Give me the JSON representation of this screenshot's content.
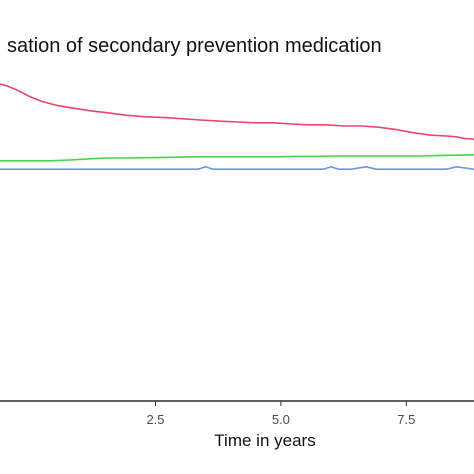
{
  "chart_data": {
    "type": "line",
    "title": "sation of secondary prevention medication",
    "xlabel": "Time in years",
    "ylabel": "",
    "xlim": [
      -0.6,
      8.85
    ],
    "ylim": [
      0,
      100
    ],
    "x_ticks": [
      2.5,
      5.0,
      7.5
    ],
    "x_tick_labels": [
      "2.5",
      "5.0",
      "7.5"
    ],
    "grid": false,
    "legend": "none",
    "series": [
      {
        "color": "#e8476a",
        "x": [
          -0.6,
          -0.45,
          -0.3,
          -0.15,
          0.0,
          0.25,
          0.55,
          0.9,
          1.2,
          1.55,
          1.9,
          2.3,
          2.7,
          3.05,
          3.4,
          3.8,
          4.15,
          4.5,
          4.85,
          5.2,
          5.55,
          5.9,
          6.25,
          6.6,
          6.95,
          7.3,
          7.65,
          8.0,
          8.3,
          8.5,
          8.65,
          8.85
        ],
        "y": [
          79.0,
          78.5,
          77.7,
          76.8,
          75.8,
          74.6,
          73.6,
          72.9,
          72.3,
          71.8,
          71.2,
          70.8,
          70.6,
          70.3,
          70.0,
          69.7,
          69.5,
          69.3,
          69.3,
          69.0,
          68.8,
          68.8,
          68.5,
          68.5,
          68.2,
          67.6,
          66.8,
          66.2,
          66.0,
          65.8,
          65.4,
          65.2
        ]
      },
      {
        "color": "#4cd14a",
        "x": [
          -0.6,
          -0.3,
          0.0,
          0.4,
          0.8,
          1.2,
          1.5,
          2.0,
          2.5,
          2.9,
          3.3,
          3.7,
          4.1,
          4.5,
          4.9,
          5.3,
          5.7,
          6.1,
          6.5,
          6.9,
          7.3,
          7.7,
          8.1,
          8.5,
          8.85
        ],
        "y": [
          59.8,
          59.8,
          59.8,
          59.8,
          60.0,
          60.3,
          60.5,
          60.5,
          60.6,
          60.7,
          60.8,
          60.8,
          60.8,
          60.8,
          60.8,
          60.9,
          60.9,
          61.0,
          61.0,
          61.0,
          61.0,
          61.0,
          61.1,
          61.2,
          61.3
        ]
      },
      {
        "color": "#6b98e6",
        "x": [
          -0.6,
          -0.3,
          0.0,
          0.5,
          1.0,
          1.5,
          2.0,
          2.5,
          3.0,
          3.35,
          3.5,
          3.65,
          4.0,
          4.5,
          5.0,
          5.5,
          5.85,
          6.0,
          6.15,
          6.4,
          6.7,
          6.9,
          7.1,
          7.5,
          8.0,
          8.3,
          8.5,
          8.85
        ],
        "y": [
          57.7,
          57.7,
          57.7,
          57.7,
          57.7,
          57.7,
          57.7,
          57.7,
          57.7,
          57.7,
          58.3,
          57.7,
          57.7,
          57.7,
          57.7,
          57.7,
          57.7,
          58.3,
          57.7,
          57.7,
          58.3,
          57.7,
          57.7,
          57.7,
          57.7,
          57.7,
          58.3,
          57.7
        ]
      }
    ]
  }
}
